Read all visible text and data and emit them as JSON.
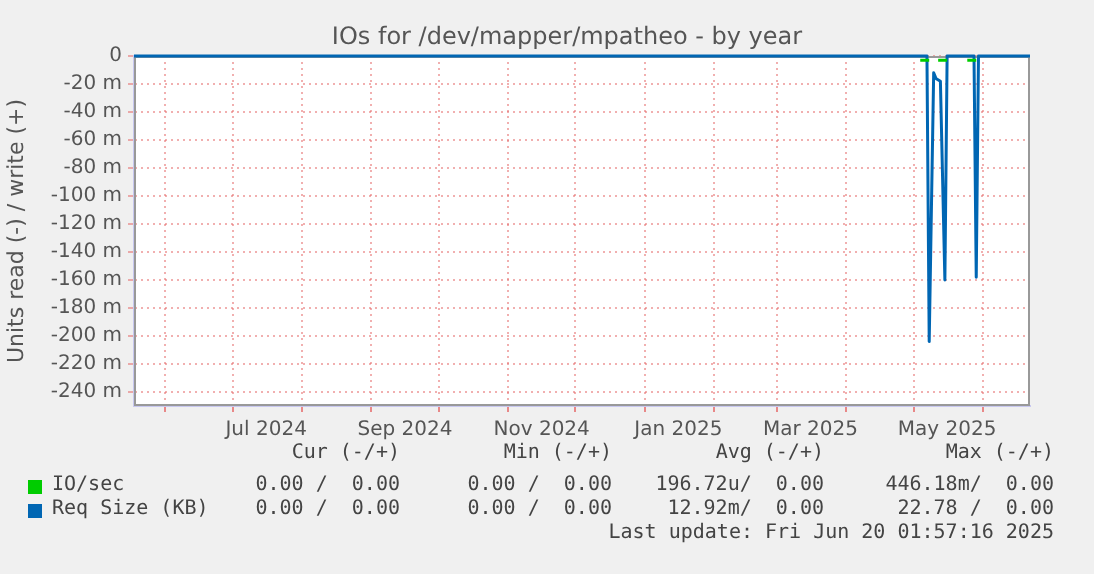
{
  "chart_data": {
    "type": "line",
    "title": "IOs for /dev/mapper/mpatheo - by year",
    "ylabel": "Units read (-) / write (+)",
    "xlim": [
      "2024-05-18",
      "2025-06-22"
    ],
    "xticks": [
      {
        "value": "2024-06-01",
        "label": null
      },
      {
        "value": "2024-07-01",
        "label": null
      },
      {
        "value": "2024-07-16",
        "label": "Jul 2024"
      },
      {
        "value": "2024-08-01",
        "label": null
      },
      {
        "value": "2024-09-01",
        "label": null
      },
      {
        "value": "2024-09-16",
        "label": "Sep 2024"
      },
      {
        "value": "2024-10-01",
        "label": null
      },
      {
        "value": "2024-11-01",
        "label": null
      },
      {
        "value": "2024-11-16",
        "label": "Nov 2024"
      },
      {
        "value": "2024-12-01",
        "label": null
      },
      {
        "value": "2025-01-01",
        "label": null
      },
      {
        "value": "2025-01-16",
        "label": "Jan 2025"
      },
      {
        "value": "2025-02-01",
        "label": null
      },
      {
        "value": "2025-03-01",
        "label": null
      },
      {
        "value": "2025-03-16",
        "label": "Mar 2025"
      },
      {
        "value": "2025-04-01",
        "label": null
      },
      {
        "value": "2025-05-01",
        "label": null
      },
      {
        "value": "2025-05-16",
        "label": "May 2025"
      },
      {
        "value": "2025-06-01",
        "label": null
      }
    ],
    "ylim": [
      -250,
      0
    ],
    "yticks": [
      {
        "value": -240,
        "label": "-240 m"
      },
      {
        "value": -220,
        "label": "-220 m"
      },
      {
        "value": -200,
        "label": "-200 m"
      },
      {
        "value": -180,
        "label": "-180 m"
      },
      {
        "value": -160,
        "label": "-160 m"
      },
      {
        "value": -140,
        "label": "-140 m"
      },
      {
        "value": -120,
        "label": "-120 m"
      },
      {
        "value": -100,
        "label": "-100 m"
      },
      {
        "value": -80,
        "label": "-80 m"
      },
      {
        "value": -60,
        "label": "-60 m"
      },
      {
        "value": -40,
        "label": "-40 m"
      },
      {
        "value": -20,
        "label": "-20 m"
      },
      0
    ],
    "grid": true,
    "legend": "bottom left",
    "marker": "none",
    "line_style": "solid",
    "series": [
      {
        "name": "IO/sec",
        "color": "#00cc00",
        "x": [
          "2025-05-04",
          "2025-05-08",
          "2025-05-09",
          "2025-05-12",
          "2025-05-16",
          "2025-05-17",
          "2025-05-25",
          "2025-05-29"
        ],
        "values": [
          -3,
          -3,
          null,
          -3,
          -3,
          null,
          -3,
          -3
        ]
      },
      {
        "name": "Req Size (KB)",
        "color": "#0066b3",
        "x": [
          "2024-05-18",
          "2025-05-07",
          "2025-05-08",
          "2025-05-10",
          "2025-05-11",
          "2025-05-13",
          "2025-05-15",
          "2025-05-16",
          "2025-05-28",
          "2025-05-29",
          "2025-05-30",
          "2025-06-22"
        ],
        "values": [
          0,
          0,
          -204,
          -12,
          -16,
          -18,
          -160,
          0,
          0,
          -158,
          0,
          0
        ]
      }
    ],
    "annotations": [
      "Cur (-/+)",
      "Min (-/+)",
      "Avg (-/+)",
      "Max (-/+)",
      "0.00 /  0.00",
      "0.00 /  0.00",
      "196.72u/  0.00",
      "446.18m/  0.00",
      "0.00 /  0.00",
      "0.00 /  0.00",
      "12.92m/  0.00",
      "22.78 /  0.00",
      "Last update: Fri Jun 20 01:57:16 2025"
    ]
  }
}
